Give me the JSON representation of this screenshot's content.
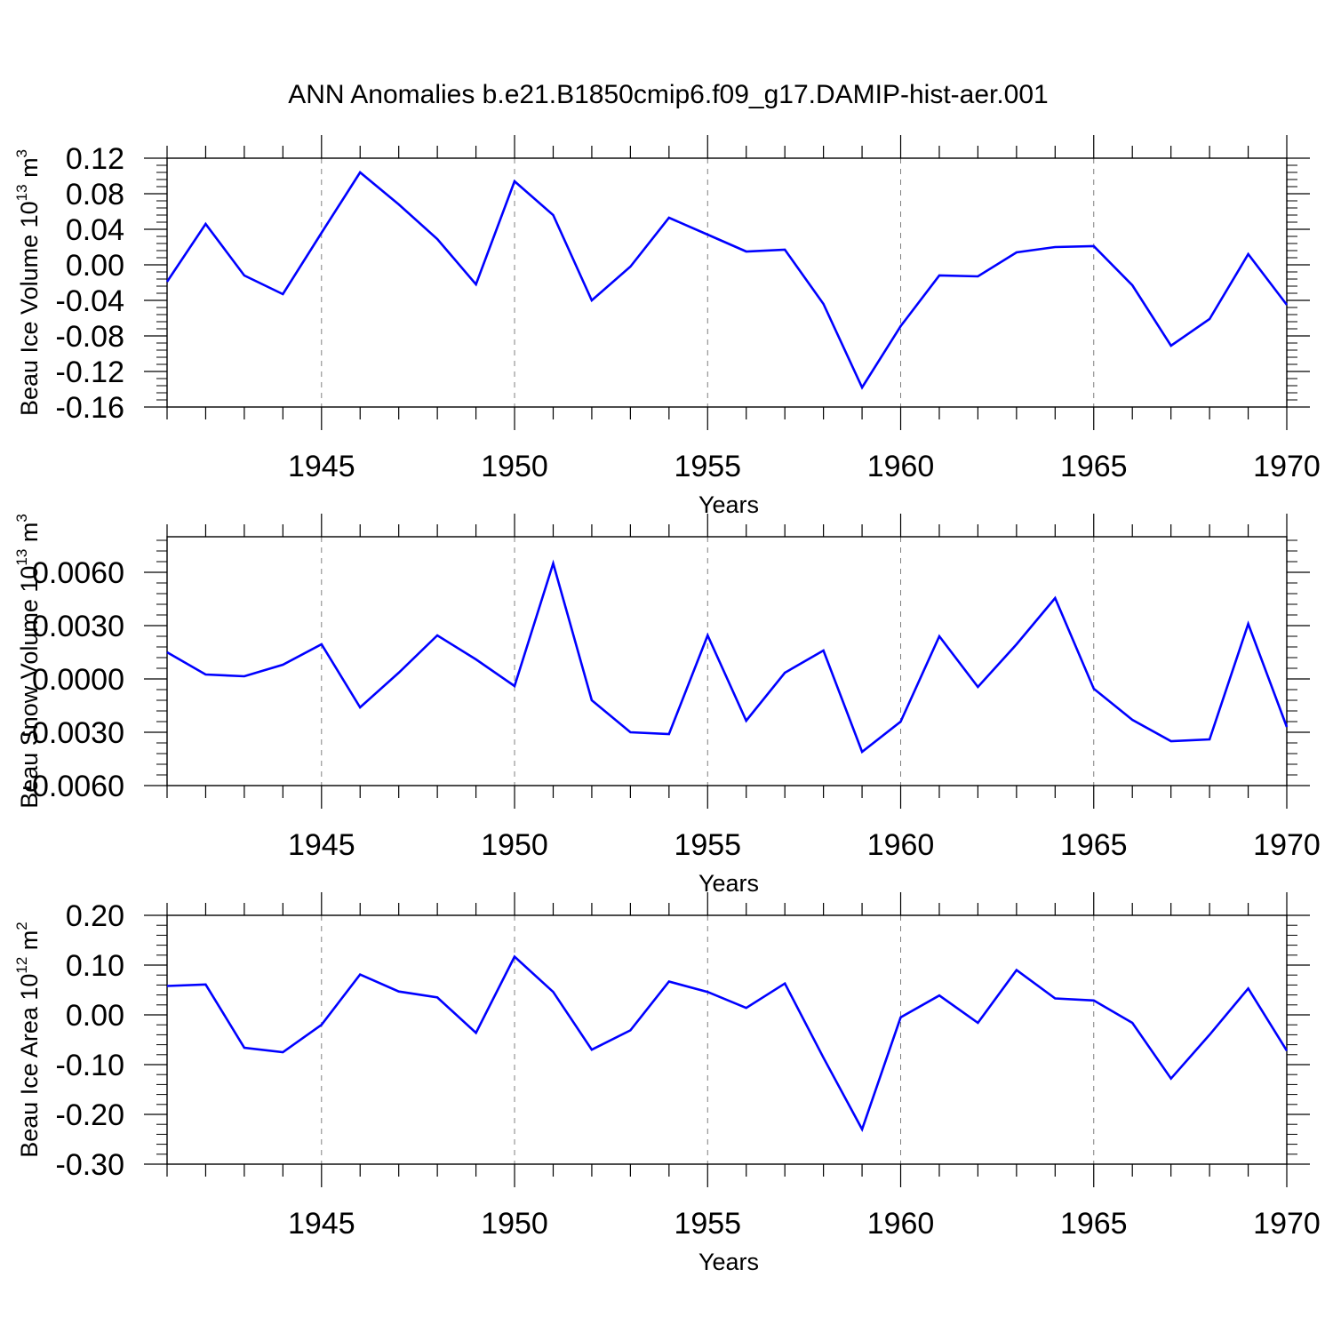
{
  "title": "ANN Anomalies b.e21.B1850cmip6.f09_g17.DAMIP-hist-aer.001",
  "colors": {
    "series": "#0000ff",
    "axis": "#000000",
    "grid": "#808080",
    "background": "#ffffff"
  },
  "chart_data": [
    {
      "type": "line",
      "ylabel": {
        "main": "Beau Ice Volume 10",
        "sup": "13",
        "after": " m",
        "sup2": "3"
      },
      "xlabel": "Years",
      "xlim": [
        1941,
        1970
      ],
      "ylim": [
        -0.16,
        0.12
      ],
      "grid": "vertical dashed lines at major x ticks",
      "xticks": [
        1945,
        1950,
        1955,
        1960,
        1965,
        1970
      ],
      "xtick_labels": [
        "1945",
        "1950",
        "1955",
        "1960",
        "1965",
        "1970"
      ],
      "yticks": [
        -0.16,
        -0.12,
        -0.08,
        -0.04,
        0.0,
        0.04,
        0.08,
        0.12
      ],
      "ytick_labels": [
        "-0.16",
        "-0.12",
        "-0.08",
        "-0.04",
        "0.00",
        "0.04",
        "0.08",
        "0.12"
      ],
      "x": [
        1941,
        1942,
        1943,
        1944,
        1945,
        1946,
        1947,
        1948,
        1949,
        1950,
        1951,
        1952,
        1953,
        1954,
        1955,
        1956,
        1957,
        1958,
        1959,
        1960,
        1961,
        1962,
        1963,
        1964,
        1965,
        1966,
        1967,
        1968,
        1969,
        1970
      ],
      "values": [
        -0.019,
        0.046,
        -0.012,
        -0.033,
        0.036,
        0.104,
        0.068,
        0.029,
        -0.022,
        0.094,
        0.056,
        -0.04,
        -0.002,
        0.053,
        0.034,
        0.015,
        0.017,
        -0.044,
        -0.138,
        -0.069,
        -0.012,
        -0.013,
        0.014,
        0.02,
        0.021,
        -0.023,
        -0.091,
        -0.061,
        0.012,
        -0.045
      ]
    },
    {
      "type": "line",
      "ylabel": {
        "main": "Beau Snow Volume 10",
        "sup": "13",
        "after": " m",
        "sup2": "3"
      },
      "xlabel": "Years",
      "xlim": [
        1941,
        1970
      ],
      "ylim": [
        -0.006,
        0.008
      ],
      "grid": "vertical dashed lines at major x ticks",
      "xticks": [
        1945,
        1950,
        1955,
        1960,
        1965,
        1970
      ],
      "xtick_labels": [
        "1945",
        "1950",
        "1955",
        "1960",
        "1965",
        "1970"
      ],
      "yticks": [
        -0.006,
        -0.003,
        0.0,
        0.003,
        0.006
      ],
      "ytick_labels": [
        "-0.0060",
        "-0.0030",
        "0.0000",
        "0.0030",
        "0.0060"
      ],
      "x": [
        1941,
        1942,
        1943,
        1944,
        1945,
        1946,
        1947,
        1948,
        1949,
        1950,
        1951,
        1952,
        1953,
        1954,
        1955,
        1956,
        1957,
        1958,
        1959,
        1960,
        1961,
        1962,
        1963,
        1964,
        1965,
        1966,
        1967,
        1968,
        1969,
        1970
      ],
      "values": [
        0.0015,
        0.00025,
        0.00015,
        0.0008,
        0.00195,
        -0.0016,
        0.00035,
        0.00245,
        0.0011,
        -0.0004,
        0.0065,
        -0.0012,
        -0.003,
        -0.0031,
        0.00245,
        -0.00235,
        0.00035,
        0.0016,
        -0.0041,
        -0.0024,
        0.0024,
        -0.00045,
        0.00195,
        0.00455,
        -0.00055,
        -0.0023,
        -0.0035,
        -0.0034,
        0.0031,
        -0.0027
      ]
    },
    {
      "type": "line",
      "ylabel": {
        "main": "Beau Ice Area 10",
        "sup": "12",
        "after": " m",
        "sup2": "2"
      },
      "xlabel": "Years",
      "xlim": [
        1941,
        1970
      ],
      "ylim": [
        -0.3,
        0.2
      ],
      "grid": "vertical dashed lines at major x ticks",
      "xticks": [
        1945,
        1950,
        1955,
        1960,
        1965,
        1970
      ],
      "xtick_labels": [
        "1945",
        "1950",
        "1955",
        "1960",
        "1965",
        "1970"
      ],
      "yticks": [
        -0.3,
        -0.2,
        -0.1,
        0.0,
        0.1,
        0.2
      ],
      "ytick_labels": [
        "-0.30",
        "-0.20",
        "-0.10",
        "0.00",
        "0.10",
        "0.20"
      ],
      "x": [
        1941,
        1942,
        1943,
        1944,
        1945,
        1946,
        1947,
        1948,
        1949,
        1950,
        1951,
        1952,
        1953,
        1954,
        1955,
        1956,
        1957,
        1958,
        1959,
        1960,
        1961,
        1962,
        1963,
        1964,
        1965,
        1966,
        1967,
        1968,
        1969,
        1970
      ],
      "values": [
        0.058,
        0.061,
        -0.066,
        -0.075,
        -0.02,
        0.081,
        0.047,
        0.035,
        -0.036,
        0.117,
        0.046,
        -0.07,
        -0.031,
        0.067,
        0.046,
        0.014,
        0.063,
        -0.086,
        -0.23,
        -0.005,
        0.039,
        -0.016,
        0.09,
        0.033,
        0.029,
        -0.016,
        -0.128,
        -0.04,
        0.053,
        -0.072
      ]
    }
  ]
}
